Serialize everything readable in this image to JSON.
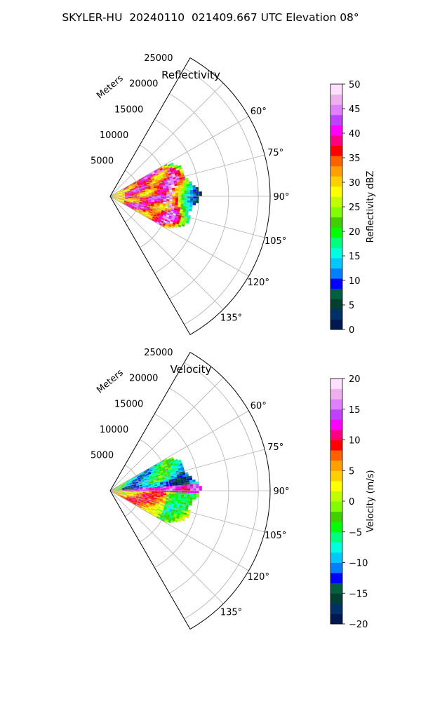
{
  "figure": {
    "title": "SKYLER-HU  20240110  021409.667 UTC Elevation 08°"
  },
  "chart_data": [
    {
      "type": "heatmap",
      "title": "Reflectivity",
      "range_label": "Meters",
      "range_ticks": [
        5000,
        10000,
        15000,
        20000,
        25000
      ],
      "azimuth_ticks": [
        "60°",
        "75°",
        "90°",
        "105°",
        "120°",
        "135°"
      ],
      "azimuth_range_deg": [
        30,
        150
      ],
      "data_extent": {
        "azimuth_deg": [
          60,
          120
        ],
        "range_m": [
          0,
          14500
        ]
      },
      "grid": true,
      "colorbar": {
        "label": "Reflectivity dBZ",
        "range": [
          0,
          50
        ],
        "ticks": [
          "0",
          "5",
          "10",
          "15",
          "20",
          "25",
          "30",
          "35",
          "40",
          "45",
          "50"
        ]
      }
    },
    {
      "type": "heatmap",
      "title": "Velocity",
      "range_label": "Meters",
      "range_ticks": [
        5000,
        10000,
        15000,
        20000,
        25000
      ],
      "azimuth_ticks": [
        "60°",
        "75°",
        "90°",
        "105°",
        "120°",
        "135°"
      ],
      "azimuth_range_deg": [
        30,
        150
      ],
      "data_extent": {
        "azimuth_deg": [
          60,
          120
        ],
        "range_m": [
          0,
          14500
        ]
      },
      "grid": true,
      "colorbar": {
        "label": "Velocity (m/s)",
        "range": [
          -20,
          20
        ],
        "ticks": [
          "−20",
          "−15",
          "−10",
          "−5",
          "0",
          "5",
          "10",
          "15",
          "20"
        ]
      }
    }
  ],
  "colors": {
    "colormap": [
      "#001850",
      "#00306a",
      "#004030",
      "#006040",
      "#0000ff",
      "#0080ff",
      "#00c8ff",
      "#00ffe0",
      "#00ff80",
      "#00ff00",
      "#40d000",
      "#80ff00",
      "#c0ff00",
      "#ffff00",
      "#ffd000",
      "#ffa000",
      "#ff6000",
      "#ff0000",
      "#ff0080",
      "#ff00ff",
      "#c040ff",
      "#e080ff",
      "#f0b0f0",
      "#ffe0ff"
    ]
  }
}
